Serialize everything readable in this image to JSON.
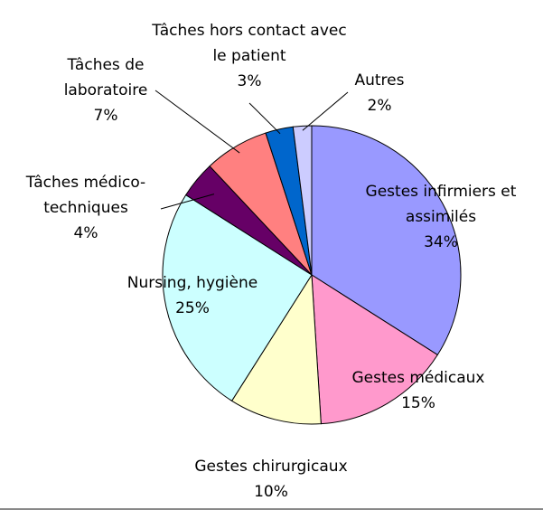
{
  "chart_data": {
    "type": "pie",
    "categories": [
      "Gestes infirmiers et assimilés",
      "Gestes médicaux",
      "Gestes chirurgicaux",
      "Nursing, hygiène",
      "Tâches médico-techniques",
      "Tâches de laboratoire",
      "Tâches hors contact avec le patient",
      "Autres"
    ],
    "values": [
      34,
      15,
      10,
      25,
      4,
      7,
      3,
      2
    ],
    "value_labels": [
      "34%",
      "15%",
      "10%",
      "25%",
      "4%",
      "7%",
      "3%",
      "2%"
    ],
    "colors": [
      "#9999ff",
      "#ff99cc",
      "#ffffcc",
      "#ccffff",
      "#660066",
      "#ff8080",
      "#0066cc",
      "#ccccff"
    ]
  }
}
